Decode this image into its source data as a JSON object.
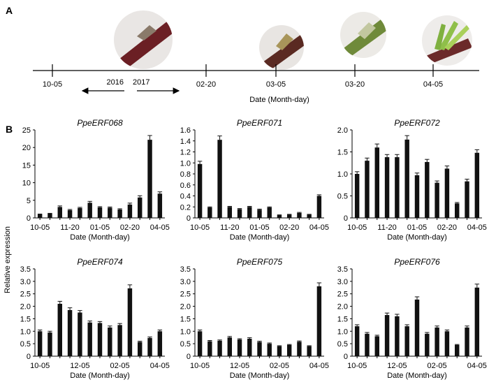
{
  "panel_labels": {
    "a": "A",
    "b": "B"
  },
  "timeline": {
    "ticks": [
      "10-05",
      "02-20",
      "03-05",
      "03-20",
      "04-05"
    ],
    "year_left": "2016",
    "year_right": "2017",
    "axis_label": "Date (Month-day)",
    "photos": [
      "bud-photo-dormant",
      "bud-photo-03-05",
      "bud-photo-03-20",
      "bud-photo-04-05"
    ]
  },
  "y_axis_shared_label": "Relative expression",
  "bar_color": "#111111",
  "chart_data": [
    {
      "type": "bar",
      "title": "PpeERF068",
      "xlabel": "Date (Month-day)",
      "ylabel": "",
      "ylim": [
        0,
        25
      ],
      "yticks": [
        "0",
        "5",
        "10",
        "15",
        "20",
        "25"
      ],
      "xticks": [
        "10-05",
        "11-20",
        "01-05",
        "02-20",
        "04-05"
      ],
      "values": [
        1.0,
        1.2,
        3.1,
        2.2,
        2.8,
        4.3,
        3.0,
        2.9,
        2.4,
        3.8,
        5.8,
        22.2,
        6.9
      ],
      "errors": [
        0.1,
        0.1,
        0.3,
        0.2,
        0.2,
        0.4,
        0.2,
        0.2,
        0.2,
        0.4,
        0.5,
        1.2,
        0.5
      ]
    },
    {
      "type": "bar",
      "title": "PpeERF071",
      "xlabel": "Date (Month-day)",
      "ylabel": "",
      "ylim": [
        0,
        1.6
      ],
      "yticks": [
        "0",
        "0.2",
        "0.4",
        "0.6",
        "0.8",
        "1.0",
        "1.2",
        "1.4",
        "1.6"
      ],
      "xticks": [
        "10-05",
        "11-20",
        "01-05",
        "02-20",
        "04-05"
      ],
      "values": [
        0.98,
        0.19,
        1.42,
        0.2,
        0.16,
        0.2,
        0.15,
        0.19,
        0.05,
        0.06,
        0.09,
        0.06,
        0.4
      ],
      "errors": [
        0.05,
        0.01,
        0.07,
        0.01,
        0.01,
        0.01,
        0.01,
        0.01,
        0.005,
        0.005,
        0.01,
        0.005,
        0.02
      ]
    },
    {
      "type": "bar",
      "title": "PpeERF072",
      "xlabel": "Date (Month-day)",
      "ylabel": "",
      "ylim": [
        0,
        2.0
      ],
      "yticks": [
        "0",
        "0.5",
        "1.0",
        "1.5",
        "2.0"
      ],
      "xticks": [
        "10-05",
        "11-20",
        "01-05",
        "02-20",
        "04-05"
      ],
      "values": [
        1.0,
        1.3,
        1.6,
        1.38,
        1.38,
        1.78,
        0.97,
        1.27,
        0.8,
        1.12,
        0.33,
        0.83,
        1.48
      ],
      "errors": [
        0.05,
        0.06,
        0.08,
        0.06,
        0.06,
        0.09,
        0.05,
        0.06,
        0.04,
        0.06,
        0.02,
        0.05,
        0.07
      ]
    },
    {
      "type": "bar",
      "title": "PpeERF074",
      "xlabel": "Date (Month-day)",
      "ylabel": "",
      "ylim": [
        0,
        3.5
      ],
      "yticks": [
        "0",
        "0.5",
        "1.0",
        "1.5",
        "2.0",
        "2.5",
        "3.0",
        "3.5"
      ],
      "xticks": [
        "10-05",
        "12-05",
        "02-05",
        "04-05"
      ],
      "values": [
        1.0,
        0.95,
        2.1,
        1.85,
        1.75,
        1.35,
        1.33,
        1.15,
        1.25,
        2.72,
        0.57,
        0.73,
        1.0
      ],
      "errors": [
        0.05,
        0.05,
        0.1,
        0.09,
        0.08,
        0.06,
        0.06,
        0.06,
        0.06,
        0.14,
        0.03,
        0.04,
        0.05
      ]
    },
    {
      "type": "bar",
      "title": "PpeERF075",
      "xlabel": "Date (Month-day)",
      "ylabel": "",
      "ylim": [
        0,
        3.5
      ],
      "yticks": [
        "0",
        "0.5",
        "1.0",
        "1.5",
        "2.0",
        "2.5",
        "3.0",
        "3.5"
      ],
      "xticks": [
        "10-05",
        "12-05",
        "02-05",
        "04-05"
      ],
      "values": [
        1.0,
        0.6,
        0.62,
        0.75,
        0.67,
        0.7,
        0.57,
        0.5,
        0.4,
        0.45,
        0.58,
        0.4,
        2.8
      ],
      "errors": [
        0.05,
        0.03,
        0.03,
        0.04,
        0.03,
        0.04,
        0.03,
        0.03,
        0.02,
        0.02,
        0.03,
        0.02,
        0.14
      ]
    },
    {
      "type": "bar",
      "title": "PpeERF076",
      "xlabel": "Date (Month-day)",
      "ylabel": "",
      "ylim": [
        0,
        3.5
      ],
      "yticks": [
        "0",
        "0.5",
        "1.0",
        "1.5",
        "2.0",
        "2.5",
        "3.0",
        "3.5"
      ],
      "xticks": [
        "10-05",
        "12-05",
        "02-05",
        "04-05"
      ],
      "values": [
        1.2,
        0.9,
        0.8,
        1.65,
        1.6,
        1.2,
        2.27,
        0.9,
        1.15,
        1.0,
        0.45,
        1.15,
        2.75
      ],
      "errors": [
        0.06,
        0.05,
        0.04,
        0.08,
        0.08,
        0.06,
        0.11,
        0.05,
        0.06,
        0.05,
        0.02,
        0.06,
        0.14
      ]
    }
  ]
}
